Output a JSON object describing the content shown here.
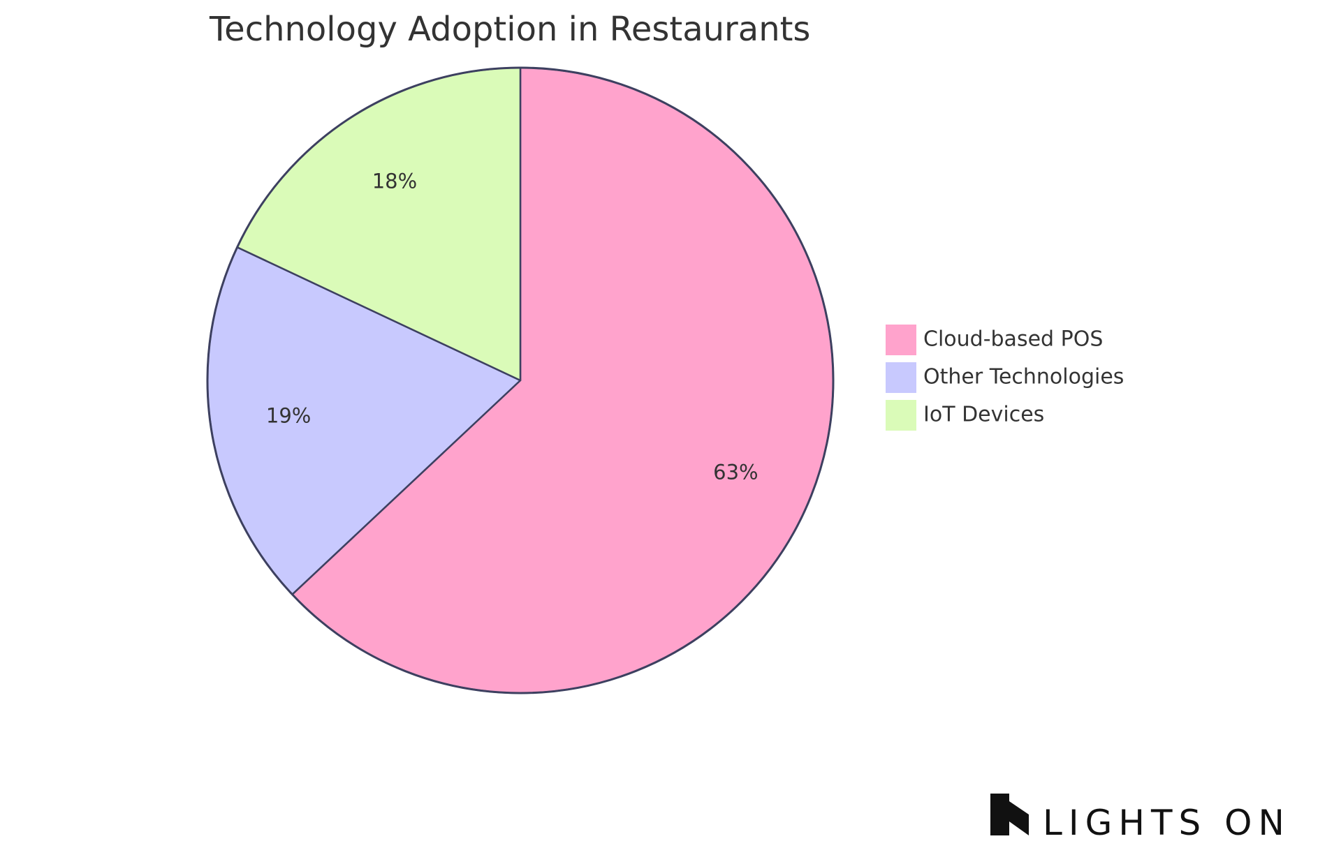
{
  "chart_data": {
    "type": "pie",
    "title": "Technology Adoption in Restaurants",
    "slices": [
      {
        "label": "Cloud-based POS",
        "value": 63,
        "display": "63%",
        "color": "#FFA3CC"
      },
      {
        "label": "Other Technologies",
        "value": 19,
        "display": "19%",
        "color": "#C8C9FE"
      },
      {
        "label": "IoT Devices",
        "value": 18,
        "display": "18%",
        "color": "#DAFBB8"
      }
    ],
    "start": "12 o'clock",
    "direction": "clockwise",
    "legend_position": "right",
    "outline_color": "#3D4060"
  },
  "branding": {
    "logo_text": "LIGHTS ON"
  }
}
